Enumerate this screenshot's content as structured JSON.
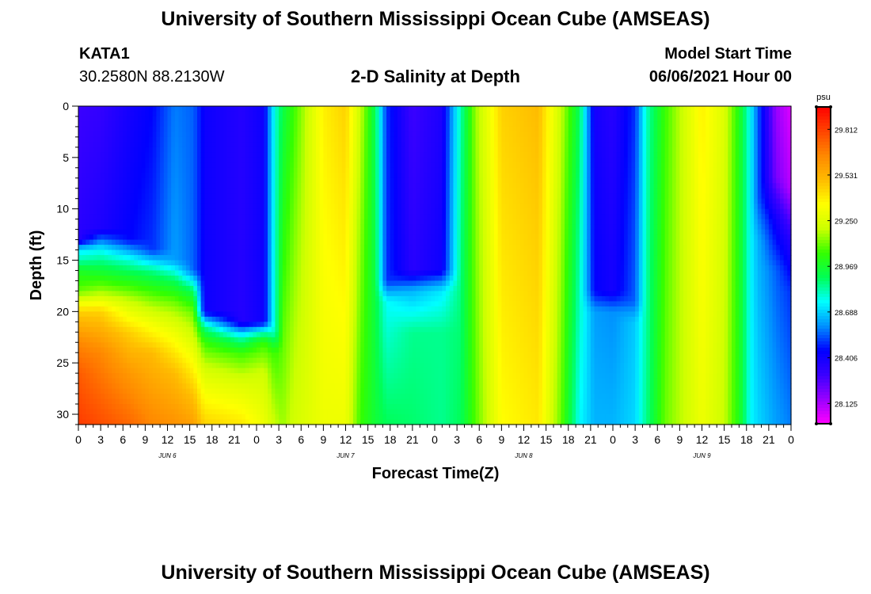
{
  "header": {
    "title": "University of Southern Mississippi Ocean Cube (AMSEAS)",
    "footer_title": "University of Southern Mississippi Ocean Cube (AMSEAS)",
    "station": "KATA1",
    "coords": "30.2580N  88.2130W",
    "plot_title": "2-D Salinity at Depth",
    "start_label": "Model Start Time",
    "start_value": "06/06/2021 Hour 00"
  },
  "chart_data": {
    "type": "heatmap",
    "title": "2-D Salinity at Depth",
    "xlabel": "Forecast Time(Z)",
    "ylabel": "Depth (ft)",
    "x_range_hours": [
      0,
      96
    ],
    "y_range": [
      0,
      31
    ],
    "x_ticks": [
      "0",
      "3",
      "6",
      "9",
      "12",
      "15",
      "18",
      "21",
      "0",
      "3",
      "6",
      "9",
      "12",
      "15",
      "18",
      "21",
      "0",
      "3",
      "6",
      "9",
      "12",
      "15",
      "18",
      "21",
      "0",
      "3",
      "6",
      "9",
      "12",
      "15",
      "18",
      "21",
      "0"
    ],
    "day_labels": [
      "JUN 6",
      "JUN 7",
      "JUN 8",
      "JUN 9"
    ],
    "y_ticks": [
      0,
      5,
      10,
      15,
      20,
      25,
      30
    ],
    "colorbar": {
      "unit": "psu",
      "labels": [
        "29.812",
        "29.531",
        "29.250",
        "28.969",
        "28.688",
        "28.406",
        "28.125"
      ],
      "colors": [
        "#ff00ff",
        "#9900ff",
        "#3a00ff",
        "#0000ff",
        "#0090ff",
        "#00ffff",
        "#00ff55",
        "#33ff00",
        "#ccff00",
        "#ffff00",
        "#ffbb00",
        "#ff8800",
        "#ff4400",
        "#ff0000"
      ],
      "vmin": 28.0,
      "vmax": 29.95
    },
    "profiles": [
      {
        "hour": 0,
        "values": [
          [
            0,
            28.3
          ],
          [
            13,
            28.35
          ],
          [
            14,
            28.72
          ],
          [
            15,
            28.82
          ],
          [
            16,
            28.98
          ],
          [
            18,
            29.1
          ],
          [
            20,
            29.45
          ],
          [
            23,
            29.65
          ],
          [
            26,
            29.75
          ],
          [
            31,
            29.82
          ]
        ]
      },
      {
        "hour": 3,
        "values": [
          [
            0,
            28.32
          ],
          [
            12,
            28.38
          ],
          [
            14,
            28.75
          ],
          [
            16,
            28.95
          ],
          [
            18,
            29.15
          ],
          [
            20,
            29.45
          ],
          [
            24,
            29.65
          ],
          [
            31,
            29.78
          ]
        ]
      },
      {
        "hour": 7,
        "values": [
          [
            0,
            28.4
          ],
          [
            13,
            28.45
          ],
          [
            15,
            28.78
          ],
          [
            17,
            29.0
          ],
          [
            19,
            29.2
          ],
          [
            22,
            29.45
          ],
          [
            26,
            29.6
          ],
          [
            31,
            29.72
          ]
        ]
      },
      {
        "hour": 10,
        "values": [
          [
            0,
            28.45
          ],
          [
            14,
            28.5
          ],
          [
            16,
            28.85
          ],
          [
            18,
            29.05
          ],
          [
            21,
            29.3
          ],
          [
            24,
            29.5
          ],
          [
            31,
            29.65
          ]
        ]
      },
      {
        "hour": 13,
        "values": [
          [
            0,
            28.58
          ],
          [
            15,
            28.62
          ],
          [
            17,
            28.9
          ],
          [
            19,
            29.1
          ],
          [
            22,
            29.3
          ],
          [
            26,
            29.5
          ],
          [
            31,
            29.62
          ]
        ]
      },
      {
        "hour": 15.5,
        "values": [
          [
            0,
            28.55
          ],
          [
            16,
            28.55
          ],
          [
            18,
            28.9
          ],
          [
            20,
            29.1
          ],
          [
            24,
            29.3
          ],
          [
            28,
            29.48
          ],
          [
            31,
            29.58
          ]
        ]
      },
      {
        "hour": 17,
        "values": [
          [
            0,
            28.42
          ],
          [
            20,
            28.42
          ],
          [
            21.5,
            28.85
          ],
          [
            23,
            29.05
          ],
          [
            26,
            29.25
          ],
          [
            31,
            29.45
          ]
        ]
      },
      {
        "hour": 22,
        "values": [
          [
            0,
            28.36
          ],
          [
            21,
            28.36
          ],
          [
            22.5,
            28.8
          ],
          [
            24,
            29.05
          ],
          [
            27,
            29.25
          ],
          [
            31,
            29.4
          ]
        ]
      },
      {
        "hour": 25,
        "values": [
          [
            0,
            28.42
          ],
          [
            21,
            28.42
          ],
          [
            22,
            28.8
          ],
          [
            23,
            29.05
          ],
          [
            26,
            29.22
          ],
          [
            31,
            29.3
          ]
        ]
      },
      {
        "hour": 26.5,
        "values": [
          [
            0,
            28.78
          ],
          [
            22,
            28.8
          ],
          [
            24,
            29.05
          ],
          [
            31,
            29.2
          ]
        ]
      },
      {
        "hour": 27.5,
        "values": [
          [
            0,
            28.92
          ],
          [
            31,
            29.15
          ]
        ]
      },
      {
        "hour": 29,
        "values": [
          [
            0,
            29.05
          ],
          [
            31,
            29.22
          ]
        ]
      },
      {
        "hour": 33,
        "values": [
          [
            0,
            29.38
          ],
          [
            31,
            29.3
          ]
        ]
      },
      {
        "hour": 36,
        "values": [
          [
            0,
            29.45
          ],
          [
            31,
            29.3
          ]
        ]
      },
      {
        "hour": 38,
        "values": [
          [
            0,
            29.2
          ],
          [
            31,
            29.05
          ]
        ]
      },
      {
        "hour": 40,
        "values": [
          [
            0,
            28.9
          ],
          [
            31,
            28.95
          ]
        ]
      },
      {
        "hour": 41.5,
        "values": [
          [
            0,
            28.5
          ],
          [
            17,
            28.5
          ],
          [
            19,
            28.75
          ],
          [
            31,
            28.9
          ]
        ]
      },
      {
        "hour": 45,
        "values": [
          [
            0,
            28.3
          ],
          [
            16,
            28.35
          ],
          [
            18,
            28.65
          ],
          [
            22,
            28.85
          ],
          [
            31,
            28.88
          ]
        ]
      },
      {
        "hour": 49,
        "values": [
          [
            0,
            28.38
          ],
          [
            16,
            28.42
          ],
          [
            18,
            28.72
          ],
          [
            22,
            28.85
          ],
          [
            31,
            28.85
          ]
        ]
      },
      {
        "hour": 51.5,
        "values": [
          [
            0,
            28.82
          ],
          [
            31,
            28.9
          ]
        ]
      },
      {
        "hour": 53.5,
        "values": [
          [
            0,
            29.15
          ],
          [
            31,
            29.08
          ]
        ]
      },
      {
        "hour": 57,
        "values": [
          [
            0,
            29.45
          ],
          [
            31,
            29.35
          ]
        ]
      },
      {
        "hour": 62,
        "values": [
          [
            0,
            29.5
          ],
          [
            31,
            29.4
          ]
        ]
      },
      {
        "hour": 65,
        "values": [
          [
            0,
            29.2
          ],
          [
            31,
            29.1
          ]
        ]
      },
      {
        "hour": 67.5,
        "values": [
          [
            0,
            28.9
          ],
          [
            31,
            28.75
          ]
        ]
      },
      {
        "hour": 69.5,
        "values": [
          [
            0,
            28.4
          ],
          [
            18,
            28.45
          ],
          [
            20,
            28.62
          ],
          [
            31,
            28.65
          ]
        ]
      },
      {
        "hour": 72,
        "values": [
          [
            0,
            28.35
          ],
          [
            18,
            28.4
          ],
          [
            20,
            28.6
          ],
          [
            31,
            28.65
          ]
        ]
      },
      {
        "hour": 75,
        "values": [
          [
            0,
            28.5
          ],
          [
            19,
            28.55
          ],
          [
            21,
            28.68
          ],
          [
            31,
            28.7
          ]
        ]
      },
      {
        "hour": 76.5,
        "values": [
          [
            0,
            28.8
          ],
          [
            31,
            28.85
          ]
        ]
      },
      {
        "hour": 79,
        "values": [
          [
            0,
            29.05
          ],
          [
            31,
            29.1
          ]
        ]
      },
      {
        "hour": 84,
        "values": [
          [
            0,
            29.38
          ],
          [
            31,
            29.3
          ]
        ]
      },
      {
        "hour": 87,
        "values": [
          [
            0,
            29.25
          ],
          [
            31,
            29.2
          ]
        ]
      },
      {
        "hour": 89,
        "values": [
          [
            0,
            29.0
          ],
          [
            31,
            29.0
          ]
        ]
      },
      {
        "hour": 90.5,
        "values": [
          [
            0,
            28.75
          ],
          [
            31,
            28.75
          ]
        ]
      },
      {
        "hour": 91.5,
        "values": [
          [
            0,
            28.55
          ],
          [
            9,
            28.55
          ],
          [
            13,
            28.65
          ],
          [
            31,
            28.7
          ]
        ]
      },
      {
        "hour": 94,
        "values": [
          [
            0,
            28.15
          ],
          [
            7,
            28.2
          ],
          [
            11,
            28.4
          ],
          [
            16,
            28.55
          ],
          [
            31,
            28.62
          ]
        ]
      },
      {
        "hour": 96,
        "values": [
          [
            0,
            28.05
          ],
          [
            8,
            28.1
          ],
          [
            13,
            28.35
          ],
          [
            18,
            28.5
          ],
          [
            31,
            28.58
          ]
        ]
      }
    ]
  }
}
